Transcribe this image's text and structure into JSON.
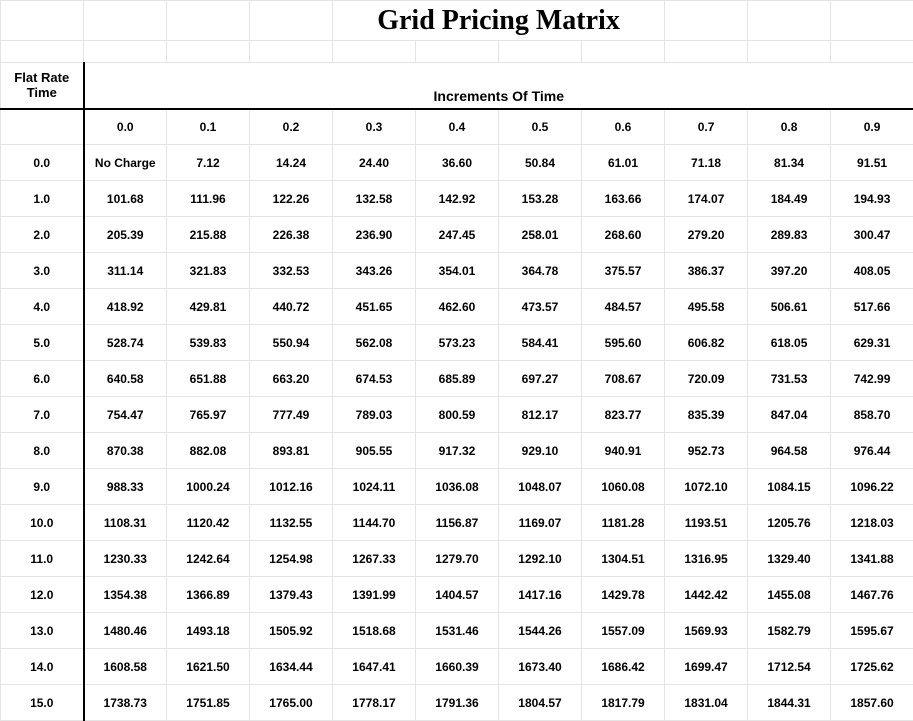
{
  "title": "Grid Pricing Matrix",
  "flat_rate_label_line1": "Flat Rate",
  "flat_rate_label_line2": "Time",
  "increments_label": "Increments Of Time",
  "col_headers": [
    "0.0",
    "0.1",
    "0.2",
    "0.3",
    "0.4",
    "0.5",
    "0.6",
    "0.7",
    "0.8",
    "0.9"
  ],
  "row_headers": [
    "0.0",
    "1.0",
    "2.0",
    "3.0",
    "4.0",
    "5.0",
    "6.0",
    "7.0",
    "8.0",
    "9.0",
    "10.0",
    "11.0",
    "12.0",
    "13.0",
    "14.0",
    "15.0"
  ],
  "rows": [
    [
      "No Charge",
      "7.12",
      "14.24",
      "24.40",
      "36.60",
      "50.84",
      "61.01",
      "71.18",
      "81.34",
      "91.51"
    ],
    [
      "101.68",
      "111.96",
      "122.26",
      "132.58",
      "142.92",
      "153.28",
      "163.66",
      "174.07",
      "184.49",
      "194.93"
    ],
    [
      "205.39",
      "215.88",
      "226.38",
      "236.90",
      "247.45",
      "258.01",
      "268.60",
      "279.20",
      "289.83",
      "300.47"
    ],
    [
      "311.14",
      "321.83",
      "332.53",
      "343.26",
      "354.01",
      "364.78",
      "375.57",
      "386.37",
      "397.20",
      "408.05"
    ],
    [
      "418.92",
      "429.81",
      "440.72",
      "451.65",
      "462.60",
      "473.57",
      "484.57",
      "495.58",
      "506.61",
      "517.66"
    ],
    [
      "528.74",
      "539.83",
      "550.94",
      "562.08",
      "573.23",
      "584.41",
      "595.60",
      "606.82",
      "618.05",
      "629.31"
    ],
    [
      "640.58",
      "651.88",
      "663.20",
      "674.53",
      "685.89",
      "697.27",
      "708.67",
      "720.09",
      "731.53",
      "742.99"
    ],
    [
      "754.47",
      "765.97",
      "777.49",
      "789.03",
      "800.59",
      "812.17",
      "823.77",
      "835.39",
      "847.04",
      "858.70"
    ],
    [
      "870.38",
      "882.08",
      "893.81",
      "905.55",
      "917.32",
      "929.10",
      "940.91",
      "952.73",
      "964.58",
      "976.44"
    ],
    [
      "988.33",
      "1000.24",
      "1012.16",
      "1024.11",
      "1036.08",
      "1048.07",
      "1060.08",
      "1072.10",
      "1084.15",
      "1096.22"
    ],
    [
      "1108.31",
      "1120.42",
      "1132.55",
      "1144.70",
      "1156.87",
      "1169.07",
      "1181.28",
      "1193.51",
      "1205.76",
      "1218.03"
    ],
    [
      "1230.33",
      "1242.64",
      "1254.98",
      "1267.33",
      "1279.70",
      "1292.10",
      "1304.51",
      "1316.95",
      "1329.40",
      "1341.88"
    ],
    [
      "1354.38",
      "1366.89",
      "1379.43",
      "1391.99",
      "1404.57",
      "1417.16",
      "1429.78",
      "1442.42",
      "1455.08",
      "1467.76"
    ],
    [
      "1480.46",
      "1493.18",
      "1505.92",
      "1518.68",
      "1531.46",
      "1544.26",
      "1557.09",
      "1569.93",
      "1582.79",
      "1595.67"
    ],
    [
      "1608.58",
      "1621.50",
      "1634.44",
      "1647.41",
      "1660.39",
      "1673.40",
      "1686.42",
      "1699.47",
      "1712.54",
      "1725.62"
    ],
    [
      "1738.73",
      "1751.85",
      "1765.00",
      "1778.17",
      "1791.36",
      "1804.57",
      "1817.79",
      "1831.04",
      "1844.31",
      "1857.60"
    ]
  ],
  "style": {
    "grid_border_color": "#e4e4e4",
    "heavy_border_color": "#000000",
    "background_color": "#ffffff",
    "title_font": "Times New Roman",
    "title_fontsize": 28,
    "header_fontsize": 13,
    "cell_fontsize": 12,
    "cell_fontweight": "bold"
  }
}
